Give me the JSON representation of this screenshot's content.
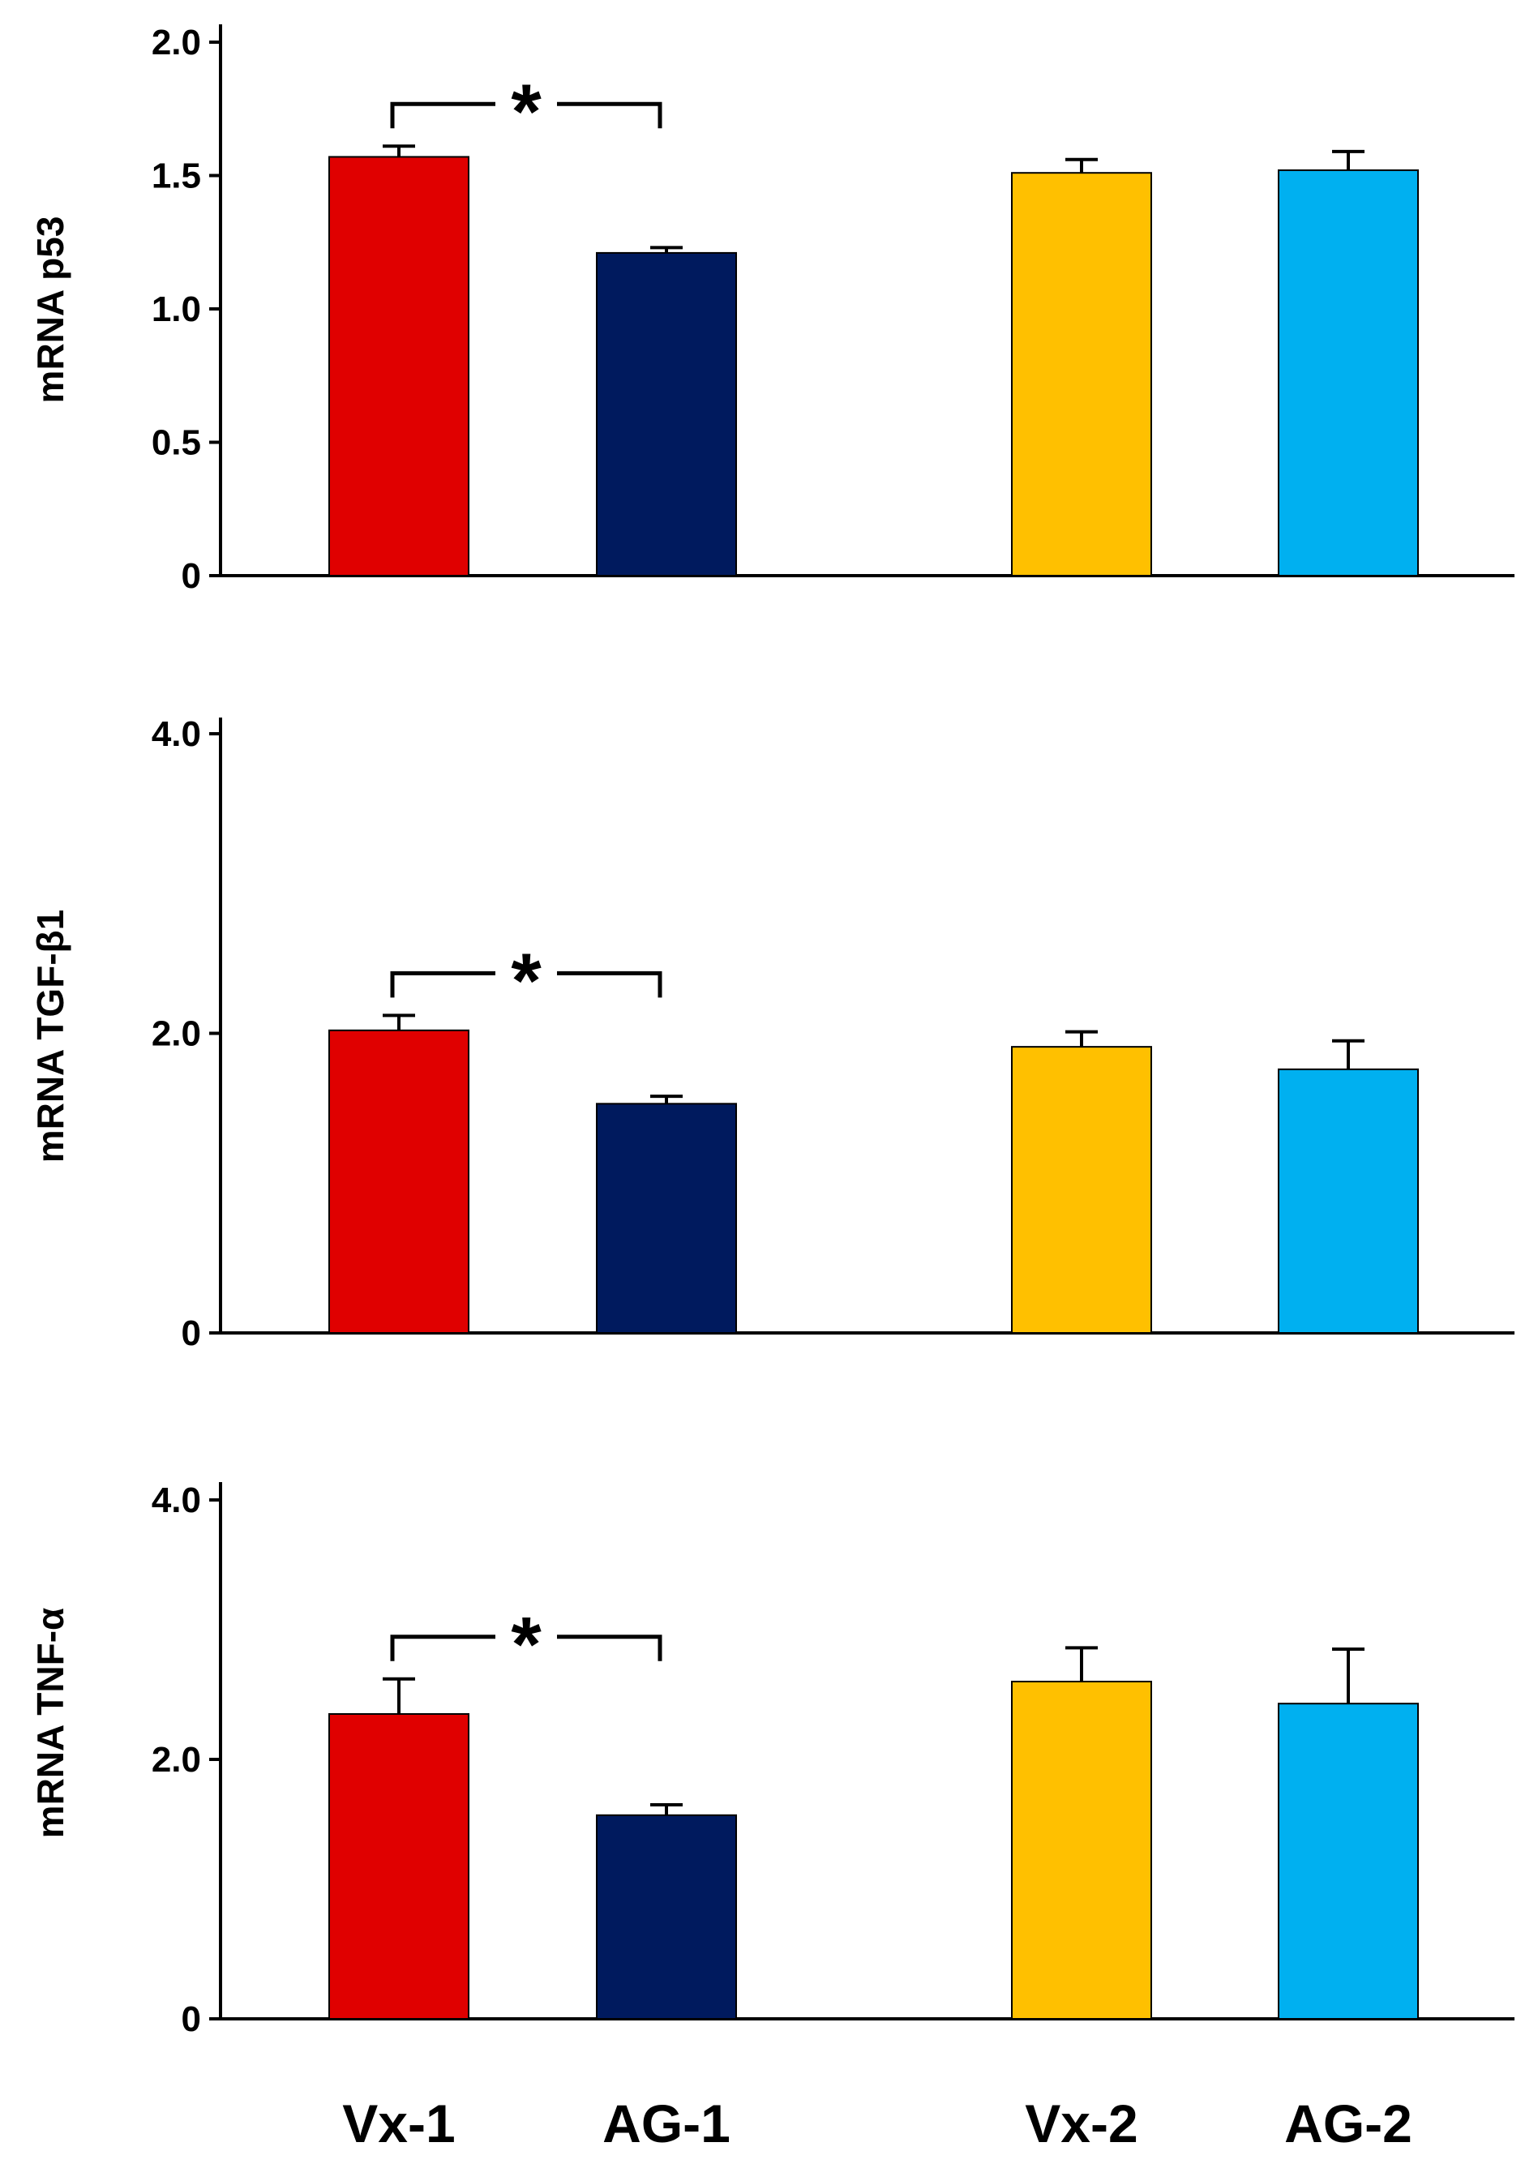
{
  "chart_data": [
    {
      "type": "bar",
      "ylabel": "mRNA p53",
      "categories": [
        "Vx-1",
        "AG-1",
        "Vx-2",
        "AG-2"
      ],
      "values": [
        1.57,
        1.21,
        1.51,
        1.52
      ],
      "errors": [
        0.04,
        0.02,
        0.05,
        0.07
      ],
      "colors": [
        "#e00000",
        "#001a5e",
        "#ffc000",
        "#00b0f0"
      ],
      "ylim": [
        0,
        2.0
      ],
      "yticks": [
        0,
        0.5,
        1.0,
        1.5,
        2.0
      ],
      "ytick_labels": [
        "0",
        "0.5",
        "1.0",
        "1.5",
        "2.0"
      ],
      "annotations": [
        {
          "text": "*",
          "between": [
            "Vx-1",
            "AG-1"
          ]
        }
      ]
    },
    {
      "type": "bar",
      "ylabel": "mRNA TGF-β1",
      "categories": [
        "Vx-1",
        "AG-1",
        "Vx-2",
        "AG-2"
      ],
      "values": [
        2.02,
        1.53,
        1.91,
        1.76
      ],
      "errors": [
        0.1,
        0.05,
        0.1,
        0.19
      ],
      "colors": [
        "#e00000",
        "#001a5e",
        "#ffc000",
        "#00b0f0"
      ],
      "ylim": [
        0,
        4.0
      ],
      "yticks": [
        0,
        2.0,
        4.0
      ],
      "ytick_labels": [
        "0",
        "2.0",
        "4.0"
      ],
      "annotations": [
        {
          "text": "*",
          "between": [
            "Vx-1",
            "AG-1"
          ]
        }
      ]
    },
    {
      "type": "bar",
      "ylabel": "mRNA TNF-α",
      "categories": [
        "Vx-1",
        "AG-1",
        "Vx-2",
        "AG-2"
      ],
      "values": [
        2.35,
        1.57,
        2.6,
        2.43
      ],
      "errors": [
        0.27,
        0.08,
        0.26,
        0.42
      ],
      "colors": [
        "#e00000",
        "#001a5e",
        "#ffc000",
        "#00b0f0"
      ],
      "ylim": [
        0,
        4.0
      ],
      "yticks": [
        0,
        2.0,
        4.0
      ],
      "ytick_labels": [
        "0",
        "2.0",
        "4.0"
      ],
      "annotations": [
        {
          "text": "*",
          "between": [
            "Vx-1",
            "AG-1"
          ]
        }
      ]
    }
  ],
  "x_labels": [
    "Vx-1",
    "AG-1",
    "Vx-2",
    "AG-2"
  ]
}
